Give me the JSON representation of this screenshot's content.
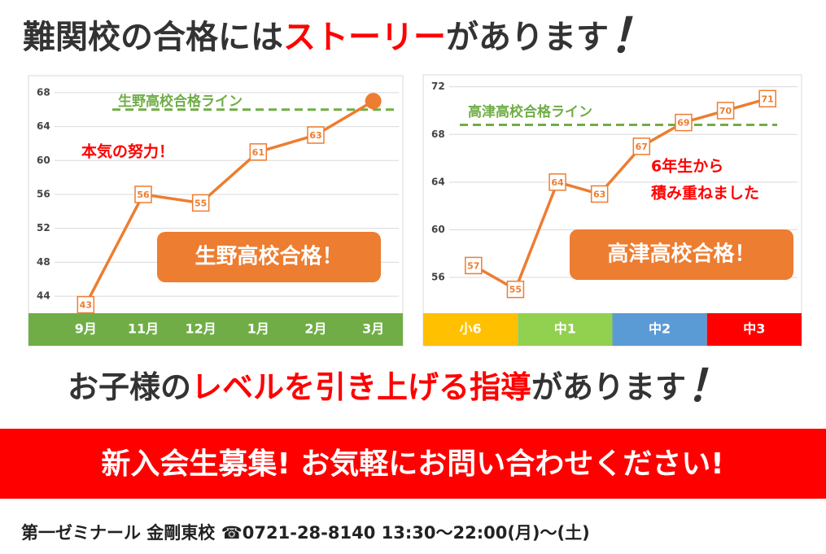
{
  "headline": [
    "難関校の合格には",
    "ストーリー",
    "があります",
    "！"
  ],
  "chart_data": [
    {
      "type": "line",
      "categories": [
        "9月",
        "11月",
        "12月",
        "1月",
        "2月",
        "3月"
      ],
      "values": [
        43,
        56,
        55,
        61,
        63,
        67
      ],
      "color": "#ed7d31",
      "highlight_last": true,
      "ylim": [
        42,
        70
      ],
      "yticks": [
        44,
        48,
        52,
        56,
        60,
        64,
        68
      ],
      "grid": true,
      "axis_band_color": "#70ad47",
      "reference_line": {
        "value": 66,
        "label": "生野高校合格ライン",
        "color": "#70ad47"
      },
      "annotation": [
        "本気の努力！"
      ],
      "badge": "生野高校合格！"
    },
    {
      "type": "line",
      "categories": [
        null,
        null,
        null,
        null,
        null,
        null,
        null,
        null
      ],
      "values": [
        57,
        55,
        64,
        63,
        67,
        69,
        70,
        71
      ],
      "color": "#ed7d31",
      "highlight_last": false,
      "ylim": [
        53,
        73
      ],
      "yticks": [
        56,
        60,
        64,
        68,
        72
      ],
      "grid": true,
      "group_labels": [
        "小6",
        "中1",
        "中2",
        "中3"
      ],
      "group_colors": [
        "#ffc000",
        "#92d050",
        "#5b9bd5",
        "#ff0000"
      ],
      "reference_line": {
        "value": 68.8,
        "label": "高津高校合格ライン",
        "color": "#70ad47"
      },
      "annotation": [
        "6年生から",
        "積み重ねました"
      ],
      "badge": "高津高校合格！"
    }
  ],
  "subheadline": [
    "お子様の",
    "レベルを引き上げる指導",
    "があります",
    "！"
  ],
  "banner": "新入会生募集!  お気軽にお問い合わせください!",
  "footer": "第一ゼミナール  金剛東校  ☎0721-28-8140    13:30〜22:00(月)〜(土)"
}
